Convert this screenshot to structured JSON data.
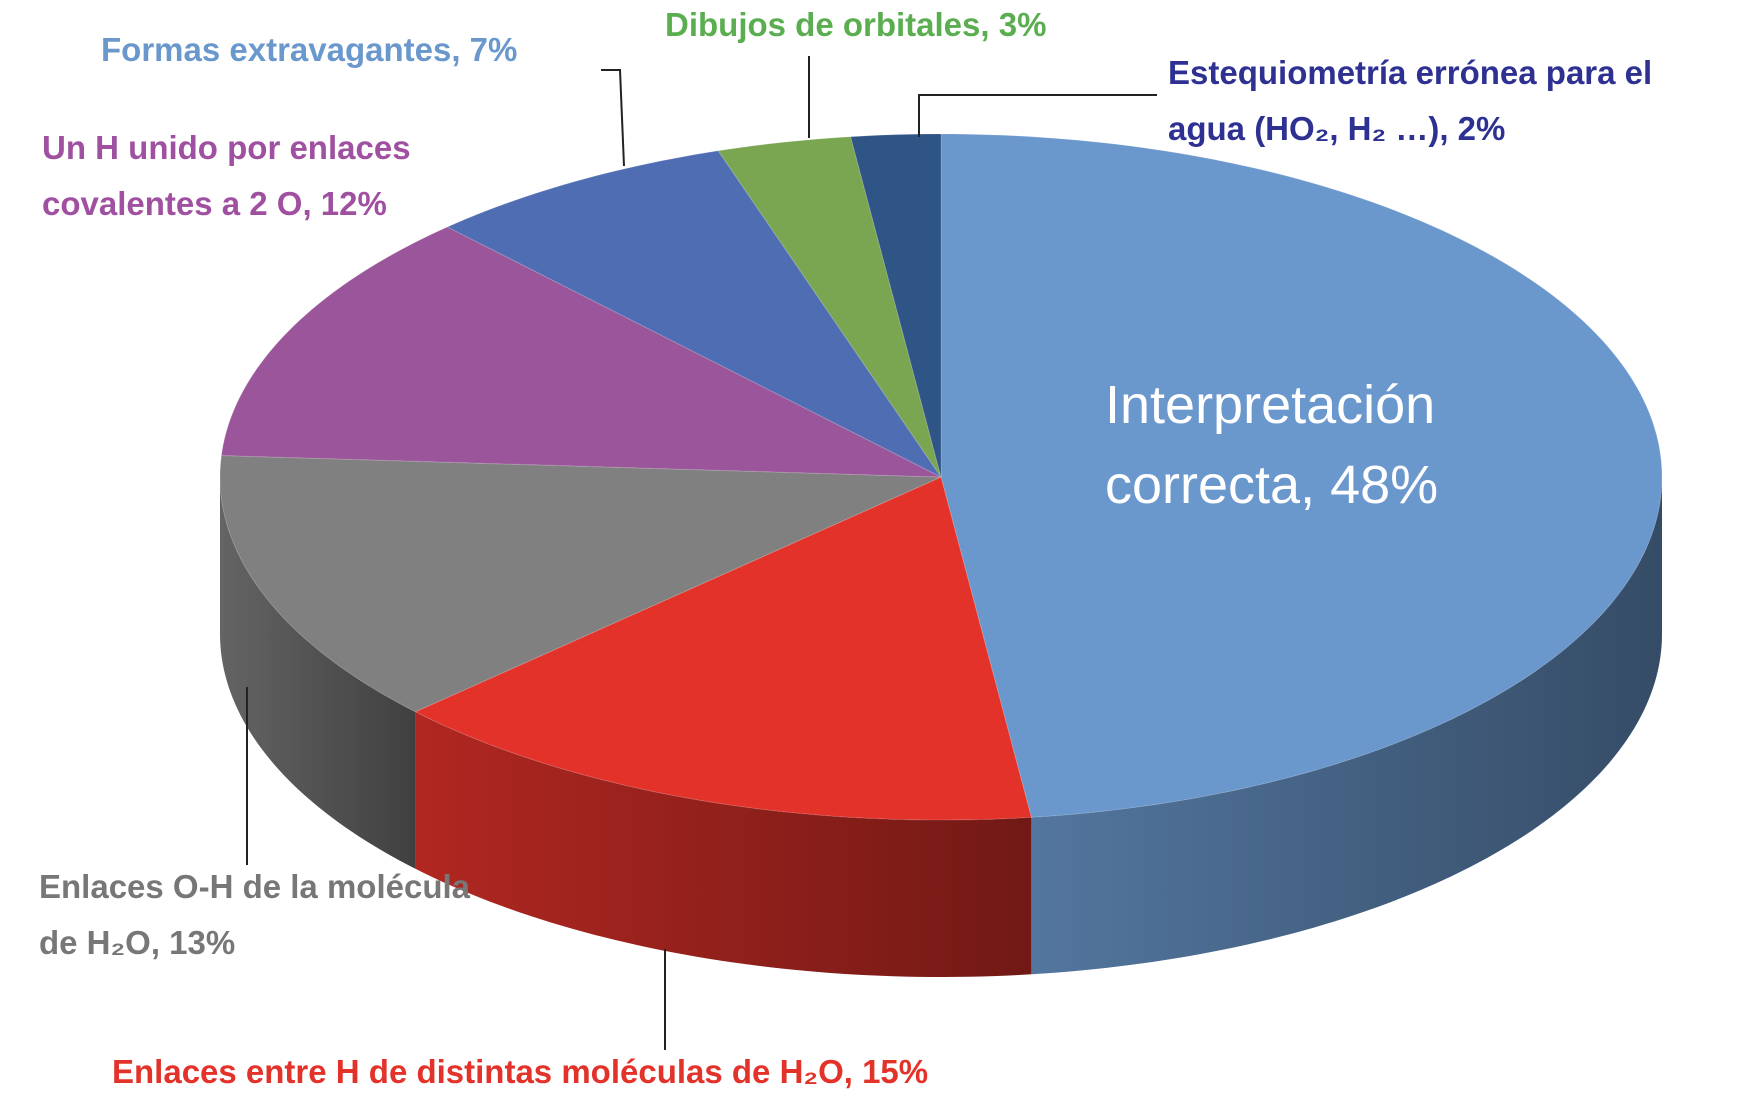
{
  "chart_data": {
    "type": "pie3d",
    "categories": [
      "Interpretación correcta, 48%",
      "Enlaces entre H de distintas moléculas de H₂O, 15%",
      "Enlaces O-H de la molécula de H₂O, 13%",
      "Un H unido por enlaces covalentes a 2 O, 12%",
      "Formas extravagantes, 7%",
      "Dibujos de orbitales, 3%",
      "Estequiometría errónea para el agua (HO₂, H₂ …), 2%"
    ],
    "values": [
      48,
      15,
      13,
      12,
      7,
      3,
      2
    ],
    "colors": [
      "#6a97cc",
      "#e3322a",
      "#808080",
      "#9b559a",
      "#4f6db3",
      "#7aa652",
      "#2f5486"
    ],
    "label_colors": [
      "#ffffff",
      "#e3322a",
      "#777777",
      "#a050a0",
      "#6a97cc",
      "#5aae50",
      "#2e3192"
    ]
  }
}
